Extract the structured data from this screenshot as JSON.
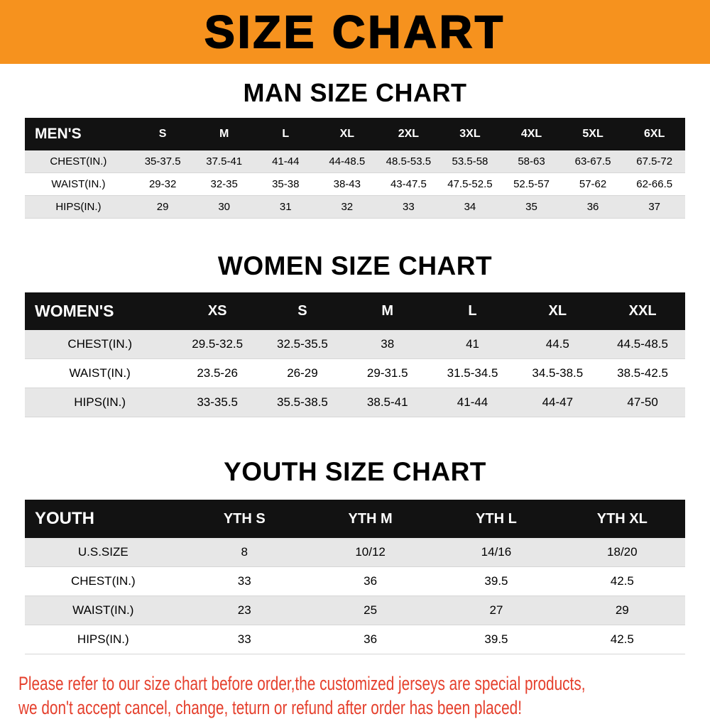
{
  "banner": {
    "title": "SIZE CHART"
  },
  "colors": {
    "banner_bg": "#F6921E",
    "table_header_bg": "#121212",
    "row_alt_bg": "#E7E7E7",
    "notice_text": "#E5402D"
  },
  "footer": {
    "line1": "Please refer to our size chart before order,the customized jerseys are special products,",
    "line2": "we don't accept cancel, change, teturn or refund after order has been placed!"
  },
  "chart_data": [
    {
      "type": "table",
      "title": "MAN SIZE CHART",
      "corner": "MEN'S",
      "columns": [
        "S",
        "M",
        "L",
        "XL",
        "2XL",
        "3XL",
        "4XL",
        "5XL",
        "6XL"
      ],
      "rows": [
        {
          "label": "CHEST(IN.)",
          "values": [
            "35-37.5",
            "37.5-41",
            "41-44",
            "44-48.5",
            "48.5-53.5",
            "53.5-58",
            "58-63",
            "63-67.5",
            "67.5-72"
          ]
        },
        {
          "label": "WAIST(IN.)",
          "values": [
            "29-32",
            "32-35",
            "35-38",
            "38-43",
            "43-47.5",
            "47.5-52.5",
            "52.5-57",
            "57-62",
            "62-66.5"
          ]
        },
        {
          "label": "HIPS(IN.)",
          "values": [
            "29",
            "30",
            "31",
            "32",
            "33",
            "34",
            "35",
            "36",
            "37"
          ]
        }
      ]
    },
    {
      "type": "table",
      "title": "WOMEN SIZE CHART",
      "corner": "WOMEN'S",
      "columns": [
        "XS",
        "S",
        "M",
        "L",
        "XL",
        "XXL"
      ],
      "rows": [
        {
          "label": "CHEST(IN.)",
          "values": [
            "29.5-32.5",
            "32.5-35.5",
            "38",
            "41",
            "44.5",
            "44.5-48.5"
          ]
        },
        {
          "label": "WAIST(IN.)",
          "values": [
            "23.5-26",
            "26-29",
            "29-31.5",
            "31.5-34.5",
            "34.5-38.5",
            "38.5-42.5"
          ]
        },
        {
          "label": "HIPS(IN.)",
          "values": [
            "33-35.5",
            "35.5-38.5",
            "38.5-41",
            "41-44",
            "44-47",
            "47-50"
          ]
        }
      ]
    },
    {
      "type": "table",
      "title": "YOUTH SIZE CHART",
      "corner": "YOUTH",
      "columns": [
        "YTH S",
        "YTH M",
        "YTH L",
        "YTH XL"
      ],
      "rows": [
        {
          "label": "U.S.SIZE",
          "values": [
            "8",
            "10/12",
            "14/16",
            "18/20"
          ]
        },
        {
          "label": "CHEST(IN.)",
          "values": [
            "33",
            "36",
            "39.5",
            "42.5"
          ]
        },
        {
          "label": "WAIST(IN.)",
          "values": [
            "23",
            "25",
            "27",
            "29"
          ]
        },
        {
          "label": "HIPS(IN.)",
          "values": [
            "33",
            "36",
            "39.5",
            "42.5"
          ]
        }
      ]
    }
  ]
}
